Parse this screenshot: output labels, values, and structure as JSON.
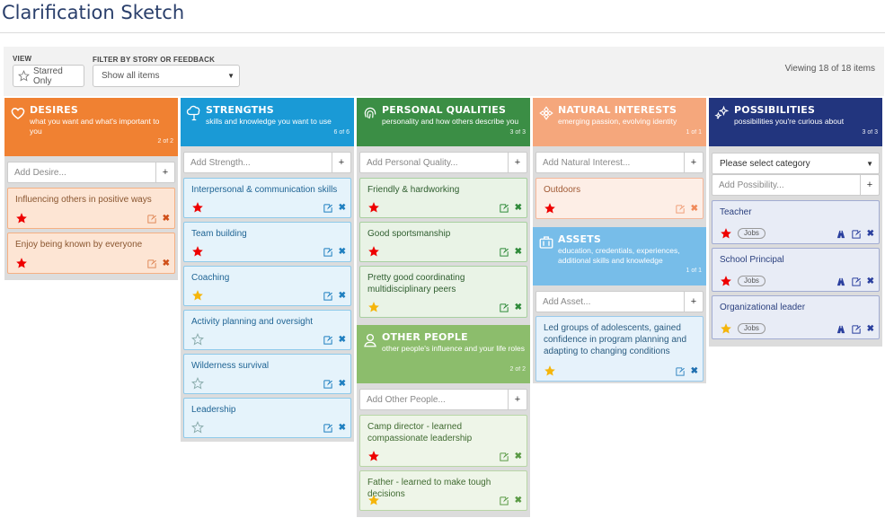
{
  "app": {
    "title": "Clarification Sketch"
  },
  "toolbar": {
    "view_label": "VIEW",
    "starred_only_label": "Starred Only",
    "filter_label": "FILTER BY STORY OR FEEDBACK",
    "filter_value": "Show all items",
    "viewing_text": "Viewing 18 of 18 items"
  },
  "columns": {
    "desires": {
      "name": "DESIRES",
      "subtitle": "what you want and what's important to you",
      "count": "2 of 2",
      "add_placeholder": "Add Desire...",
      "color": "#f08132",
      "items": [
        {
          "text": "Influencing others in positive ways",
          "star": "red"
        },
        {
          "text": "Enjoy being known by everyone",
          "star": "red"
        }
      ]
    },
    "strengths": {
      "name": "STRENGTHS",
      "subtitle": "skills and knowledge you want to use",
      "count": "6 of 6",
      "add_placeholder": "Add Strength...",
      "color": "#1a9ad6",
      "items": [
        {
          "text": "Interpersonal & communication skills",
          "star": "red"
        },
        {
          "text": "Team building",
          "star": "red"
        },
        {
          "text": "Coaching",
          "star": "gold"
        },
        {
          "text": "Activity planning and oversight",
          "star": "empty"
        },
        {
          "text": "Wilderness survival",
          "star": "empty"
        },
        {
          "text": "Leadership",
          "star": "empty"
        }
      ]
    },
    "personal": {
      "name": "PERSONAL QUALITIES",
      "subtitle": "personality and how others describe you",
      "count": "3 of 3",
      "add_placeholder": "Add Personal Quality...",
      "color": "#3b8e45",
      "items": [
        {
          "text": "Friendly & hardworking",
          "star": "red"
        },
        {
          "text": "Good sportsmanship",
          "star": "red"
        },
        {
          "text": "Pretty good coordinating multidisciplinary peers",
          "star": "gold"
        }
      ]
    },
    "other": {
      "name": "OTHER PEOPLE",
      "subtitle": "other people's influence and your life roles",
      "count": "2 of 2",
      "add_placeholder": "Add Other People...",
      "color": "#8cbd6c",
      "items": [
        {
          "text": "Camp director - learned compassionate leadership",
          "star": "red"
        },
        {
          "text": "Father - learned to make tough decisions",
          "star": "gold"
        }
      ]
    },
    "natural": {
      "name": "NATURAL INTERESTS",
      "subtitle": "emerging passion, evolving identity",
      "count": "1 of 1",
      "add_placeholder": "Add Natural Interest...",
      "color": "#f5a77c",
      "items": [
        {
          "text": "Outdoors",
          "star": "red"
        }
      ]
    },
    "assets": {
      "name": "ASSETS",
      "subtitle": "education, credentials, experiences, additional skills and knowledge",
      "count": "1 of 1",
      "add_placeholder": "Add Asset...",
      "color": "#77bde9",
      "items": [
        {
          "text": "Led groups of adolescents, gained confidence in program planning and adapting to changing conditions",
          "star": "gold"
        }
      ]
    },
    "possibilities": {
      "name": "POSSIBILITIES",
      "subtitle": "possibilities you're curious about",
      "count": "3 of 3",
      "category_placeholder": "Please select category",
      "add_placeholder": "Add Possibility...",
      "color": "#22357e",
      "items": [
        {
          "text": "Teacher",
          "star": "red",
          "tag": "Jobs"
        },
        {
          "text": "School Principal",
          "star": "red",
          "tag": "Jobs"
        },
        {
          "text": "Organizational leader",
          "star": "gold",
          "tag": "Jobs"
        }
      ]
    }
  },
  "icons": {
    "star": "star-icon",
    "edit": "edit-icon",
    "delete": "close-icon",
    "assign": "road-icon"
  }
}
